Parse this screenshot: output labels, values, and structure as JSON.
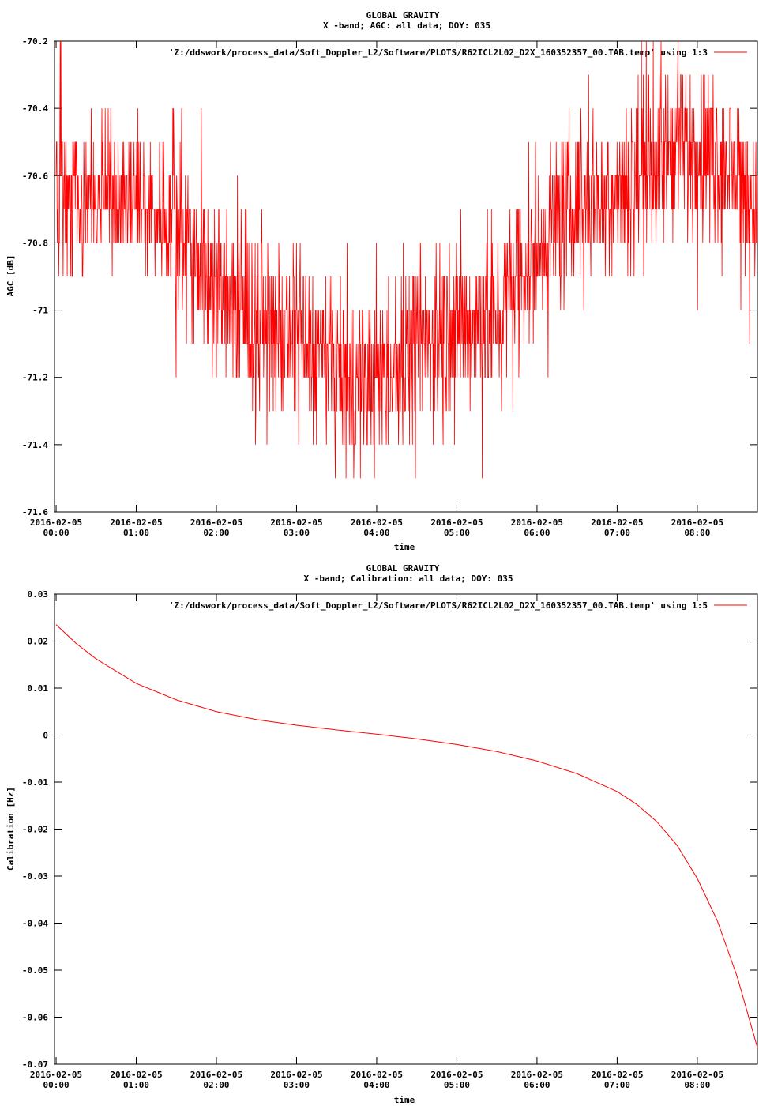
{
  "colors": {
    "series": "#ff0000",
    "axis": "#000000",
    "background": "#ffffff"
  },
  "chart_data": [
    {
      "type": "line",
      "title": "GLOBAL GRAVITY",
      "subtitle": "X -band; AGC: all data; DOY: 035",
      "xlabel": "time",
      "ylabel": "AGC [dB]",
      "ylim": [
        -71.6,
        -70.2
      ],
      "xlim_hours": [
        -0.02,
        8.75
      ],
      "legend_position": "top-right",
      "x_tick_date": "2016-02-05",
      "x_tick_hours": [
        0,
        1,
        2,
        3,
        4,
        5,
        6,
        7,
        8
      ],
      "x_tick_times": [
        "00:00",
        "01:00",
        "02:00",
        "03:00",
        "04:00",
        "05:00",
        "06:00",
        "07:00",
        "08:00"
      ],
      "y_ticks": [
        -70.2,
        -70.4,
        -70.6,
        -70.8,
        -71,
        -71.2,
        -71.4,
        -71.6
      ],
      "y_tick_labels": [
        "-70.2",
        "-70.4",
        "-70.6",
        "-70.8",
        "-71",
        "-71.2",
        "-71.4",
        "-71.6"
      ],
      "series": [
        {
          "name": "'Z:/ddswork/process_data/Soft_Doppler_L2/Software/PLOTS/R62ICL2L02_D2X_160352357_00.TAB.temp' using 1:3",
          "x_hours": [
            0,
            0.25,
            0.5,
            0.75,
            1.0,
            1.25,
            1.5,
            1.75,
            2.0,
            2.25,
            2.5,
            2.75,
            3.0,
            3.25,
            3.5,
            3.75,
            4.0,
            4.25,
            4.5,
            4.75,
            5.0,
            5.25,
            5.5,
            5.75,
            6.0,
            6.25,
            6.5,
            6.75,
            7.0,
            7.25,
            7.5,
            7.75,
            8.0,
            8.25,
            8.5,
            8.75
          ],
          "center": [
            -70.68,
            -70.66,
            -70.66,
            -70.66,
            -70.68,
            -70.7,
            -70.74,
            -70.82,
            -70.93,
            -71.0,
            -71.05,
            -71.08,
            -71.1,
            -71.13,
            -71.18,
            -71.22,
            -71.22,
            -71.18,
            -71.12,
            -71.08,
            -71.05,
            -71.02,
            -71.0,
            -70.92,
            -70.82,
            -70.74,
            -70.68,
            -70.65,
            -70.63,
            -70.6,
            -70.56,
            -70.52,
            -70.52,
            -70.54,
            -70.6,
            -70.7
          ],
          "spread": [
            0.14,
            0.1,
            0.1,
            0.1,
            0.1,
            0.1,
            0.12,
            0.12,
            0.12,
            0.12,
            0.12,
            0.12,
            0.12,
            0.12,
            0.12,
            0.12,
            0.12,
            0.12,
            0.12,
            0.12,
            0.12,
            0.12,
            0.12,
            0.12,
            0.12,
            0.12,
            0.12,
            0.1,
            0.1,
            0.12,
            0.12,
            0.12,
            0.12,
            0.12,
            0.12,
            0.12
          ],
          "min": -71.5,
          "max": -70.2,
          "step": 0.1,
          "note_samples": 1900
        }
      ]
    },
    {
      "type": "line",
      "title": "GLOBAL GRAVITY",
      "subtitle": "X -band; Calibration: all data; DOY: 035",
      "xlabel": "time",
      "ylabel": "Calibration [Hz]",
      "ylim": [
        -0.07,
        0.03
      ],
      "xlim_hours": [
        -0.02,
        8.75
      ],
      "legend_position": "top-right",
      "x_tick_date": "2016-02-05",
      "x_tick_hours": [
        0,
        1,
        2,
        3,
        4,
        5,
        6,
        7,
        8
      ],
      "x_tick_times": [
        "00:00",
        "01:00",
        "02:00",
        "03:00",
        "04:00",
        "05:00",
        "06:00",
        "07:00",
        "08:00"
      ],
      "y_ticks": [
        0.03,
        0.02,
        0.01,
        0,
        -0.01,
        -0.02,
        -0.03,
        -0.04,
        -0.05,
        -0.06,
        -0.07
      ],
      "y_tick_labels": [
        "0.03",
        "0.02",
        "0.01",
        "0",
        "-0.01",
        "-0.02",
        "-0.03",
        "-0.04",
        "-0.05",
        "-0.06",
        "-0.07"
      ],
      "series": [
        {
          "name": "'Z:/ddswork/process_data/Soft_Doppler_L2/Software/PLOTS/R62ICL2L02_D2X_160352357_00.TAB.temp' using 1:5",
          "x": [
            0,
            0.25,
            0.5,
            1.0,
            1.5,
            2.0,
            2.5,
            3.0,
            3.5,
            4.0,
            4.5,
            5.0,
            5.5,
            6.0,
            6.5,
            7.0,
            7.25,
            7.5,
            7.75,
            8.0,
            8.25,
            8.5,
            8.6,
            8.75
          ],
          "y": [
            0.0235,
            0.0195,
            0.0162,
            0.011,
            0.0075,
            0.005,
            0.0033,
            0.0021,
            0.0011,
            0.0002,
            -0.0008,
            -0.002,
            -0.0035,
            -0.0055,
            -0.0082,
            -0.012,
            -0.0148,
            -0.0185,
            -0.0235,
            -0.0305,
            -0.0395,
            -0.0515,
            -0.0575,
            -0.0665
          ]
        }
      ]
    }
  ]
}
